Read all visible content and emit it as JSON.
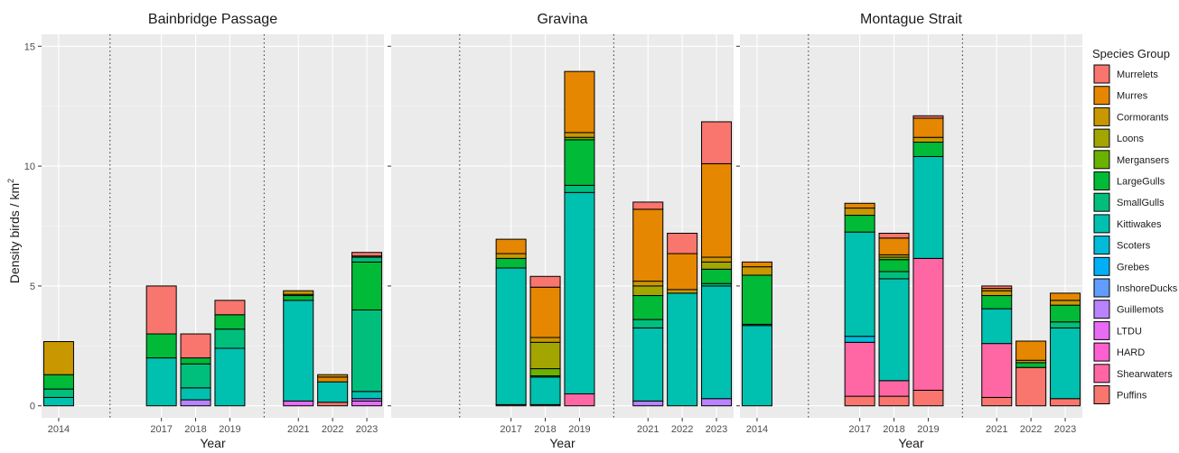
{
  "chart_data": {
    "type": "bar",
    "stacked": true,
    "ylabel": "Density birds / km",
    "ylabel_superscript": "2",
    "xlabel": "Year",
    "ylim": [
      -0.5,
      15.5
    ],
    "yticks": [
      0,
      5,
      10,
      15
    ],
    "grid": true,
    "legend_title": "Species Group",
    "legend_position": "right",
    "species": [
      {
        "name": "Murrelets",
        "color": "#F8766D"
      },
      {
        "name": "Murres",
        "color": "#E58700"
      },
      {
        "name": "Cormorants",
        "color": "#C99800"
      },
      {
        "name": "Loons",
        "color": "#A3A500"
      },
      {
        "name": "Mergansers",
        "color": "#6BB100"
      },
      {
        "name": "LargeGulls",
        "color": "#00BA38"
      },
      {
        "name": "SmallGulls",
        "color": "#00BF7D"
      },
      {
        "name": "Kittiwakes",
        "color": "#00C0AF"
      },
      {
        "name": "Scoters",
        "color": "#00BCD8"
      },
      {
        "name": "Grebes",
        "color": "#00B0F6"
      },
      {
        "name": "InshoreDucks",
        "color": "#619CFF"
      },
      {
        "name": "Guillemots",
        "color": "#B983FF"
      },
      {
        "name": "LTDU",
        "color": "#E76BF3"
      },
      {
        "name": "HARD",
        "color": "#FD61D1"
      },
      {
        "name": "Shearwaters",
        "color": "#FF67A4"
      },
      {
        "name": "Puffins",
        "color": "#F8766D"
      }
    ],
    "panels": [
      {
        "title": "Bainbridge Passage",
        "years": [
          {
            "year": "2014",
            "slot": 0,
            "segments": [
              {
                "s": "Kittiwakes",
                "v": 0.35
              },
              {
                "s": "SmallGulls",
                "v": 0.35
              },
              {
                "s": "LargeGulls",
                "v": 0.6
              },
              {
                "s": "Cormorants",
                "v": 1.38
              }
            ]
          },
          {
            "year": "2017",
            "slot": 3,
            "segments": [
              {
                "s": "Kittiwakes",
                "v": 2.0
              },
              {
                "s": "LargeGulls",
                "v": 1.0
              },
              {
                "s": "Murrelets",
                "v": 2.0
              }
            ]
          },
          {
            "year": "2018",
            "slot": 4,
            "segments": [
              {
                "s": "Guillemots",
                "v": 0.25
              },
              {
                "s": "Kittiwakes",
                "v": 0.5
              },
              {
                "s": "SmallGulls",
                "v": 1.0
              },
              {
                "s": "LargeGulls",
                "v": 0.25
              },
              {
                "s": "Murrelets",
                "v": 1.0
              }
            ]
          },
          {
            "year": "2019",
            "slot": 5,
            "segments": [
              {
                "s": "Kittiwakes",
                "v": 2.4
              },
              {
                "s": "SmallGulls",
                "v": 0.8
              },
              {
                "s": "LargeGulls",
                "v": 0.6
              },
              {
                "s": "Murrelets",
                "v": 0.6
              }
            ]
          },
          {
            "year": "2021",
            "slot": 7,
            "segments": [
              {
                "s": "LTDU",
                "v": 0.2
              },
              {
                "s": "Kittiwakes",
                "v": 4.2
              },
              {
                "s": "LargeGulls",
                "v": 0.2
              },
              {
                "s": "Mergansers",
                "v": 0.05
              },
              {
                "s": "Cormorants",
                "v": 0.15
              }
            ]
          },
          {
            "year": "2022",
            "slot": 8,
            "segments": [
              {
                "s": "Puffins",
                "v": 0.15
              },
              {
                "s": "Kittiwakes",
                "v": 0.85
              },
              {
                "s": "Murres",
                "v": 0.2
              },
              {
                "s": "Cormorants",
                "v": 0.1
              }
            ]
          },
          {
            "year": "2023",
            "slot": 9,
            "segments": [
              {
                "s": "LTDU",
                "v": 0.2
              },
              {
                "s": "Guillemots",
                "v": 0.1
              },
              {
                "s": "Kittiwakes",
                "v": 0.3
              },
              {
                "s": "SmallGulls",
                "v": 3.4
              },
              {
                "s": "LargeGulls",
                "v": 2.0
              },
              {
                "s": "SmallGulls",
                "v": 0.2
              },
              {
                "s": "Murres",
                "v": 0.05
              },
              {
                "s": "Murrelets",
                "v": 0.15
              }
            ]
          }
        ]
      },
      {
        "title": "Gravina",
        "years": [
          {
            "year": "2017",
            "slot": 3,
            "segments": [
              {
                "s": "Puffins",
                "v": 0.05
              },
              {
                "s": "Kittiwakes",
                "v": 5.7
              },
              {
                "s": "LargeGulls",
                "v": 0.4
              },
              {
                "s": "Cormorants",
                "v": 0.2
              },
              {
                "s": "Murres",
                "v": 0.6
              }
            ]
          },
          {
            "year": "2018",
            "slot": 4,
            "segments": [
              {
                "s": "Puffins",
                "v": 0.05
              },
              {
                "s": "Kittiwakes",
                "v": 1.15
              },
              {
                "s": "LargeGulls",
                "v": 0.05
              },
              {
                "s": "Mergansers",
                "v": 0.3
              },
              {
                "s": "Loons",
                "v": 1.1
              },
              {
                "s": "Cormorants",
                "v": 0.2
              },
              {
                "s": "Murres",
                "v": 2.1
              },
              {
                "s": "Murrelets",
                "v": 0.45
              }
            ]
          },
          {
            "year": "2019",
            "slot": 5,
            "segments": [
              {
                "s": "Shearwaters",
                "v": 0.5
              },
              {
                "s": "Kittiwakes",
                "v": 8.4
              },
              {
                "s": "SmallGulls",
                "v": 0.3
              },
              {
                "s": "LargeGulls",
                "v": 1.9
              },
              {
                "s": "Mergansers",
                "v": 0.1
              },
              {
                "s": "Cormorants",
                "v": 0.2
              },
              {
                "s": "Murres",
                "v": 2.55
              }
            ]
          },
          {
            "year": "2021",
            "slot": 7,
            "segments": [
              {
                "s": "Guillemots",
                "v": 0.2
              },
              {
                "s": "Kittiwakes",
                "v": 3.05
              },
              {
                "s": "SmallGulls",
                "v": 0.35
              },
              {
                "s": "LargeGulls",
                "v": 1.0
              },
              {
                "s": "Loons",
                "v": 0.4
              },
              {
                "s": "Cormorants",
                "v": 0.2
              },
              {
                "s": "Murres",
                "v": 3.0
              },
              {
                "s": "Murrelets",
                "v": 0.3
              }
            ]
          },
          {
            "year": "2022",
            "slot": 8,
            "segments": [
              {
                "s": "Kittiwakes",
                "v": 4.7
              },
              {
                "s": "Cormorants",
                "v": 0.15
              },
              {
                "s": "Murres",
                "v": 1.5
              },
              {
                "s": "Murrelets",
                "v": 0.85
              }
            ]
          },
          {
            "year": "2023",
            "slot": 9,
            "segments": [
              {
                "s": "Guillemots",
                "v": 0.3
              },
              {
                "s": "Kittiwakes",
                "v": 4.7
              },
              {
                "s": "SmallGulls",
                "v": 0.1
              },
              {
                "s": "LargeGulls",
                "v": 0.6
              },
              {
                "s": "Loons",
                "v": 0.3
              },
              {
                "s": "Cormorants",
                "v": 0.2
              },
              {
                "s": "Murres",
                "v": 3.9
              },
              {
                "s": "Murrelets",
                "v": 1.75
              }
            ]
          }
        ]
      },
      {
        "title": "Montague Strait",
        "years": [
          {
            "year": "2014",
            "slot": 0,
            "segments": [
              {
                "s": "Kittiwakes",
                "v": 3.35
              },
              {
                "s": "SmallGulls",
                "v": 0.05
              },
              {
                "s": "LargeGulls",
                "v": 2.05
              },
              {
                "s": "Cormorants",
                "v": 0.35
              },
              {
                "s": "Murres",
                "v": 0.2
              }
            ]
          },
          {
            "year": "2017",
            "slot": 3,
            "segments": [
              {
                "s": "Puffins",
                "v": 0.4
              },
              {
                "s": "Shearwaters",
                "v": 2.25
              },
              {
                "s": "Scoters",
                "v": 0.25
              },
              {
                "s": "Kittiwakes",
                "v": 4.35
              },
              {
                "s": "LargeGulls",
                "v": 0.7
              },
              {
                "s": "Cormorants",
                "v": 0.3
              },
              {
                "s": "Murres",
                "v": 0.2
              }
            ]
          },
          {
            "year": "2018",
            "slot": 4,
            "segments": [
              {
                "s": "Puffins",
                "v": 0.4
              },
              {
                "s": "Shearwaters",
                "v": 0.65
              },
              {
                "s": "Kittiwakes",
                "v": 4.25
              },
              {
                "s": "SmallGulls",
                "v": 0.3
              },
              {
                "s": "LargeGulls",
                "v": 0.5
              },
              {
                "s": "Mergansers",
                "v": 0.1
              },
              {
                "s": "Cormorants",
                "v": 0.1
              },
              {
                "s": "Murres",
                "v": 0.7
              },
              {
                "s": "Murrelets",
                "v": 0.2
              }
            ]
          },
          {
            "year": "2019",
            "slot": 5,
            "segments": [
              {
                "s": "Puffins",
                "v": 0.65
              },
              {
                "s": "Shearwaters",
                "v": 5.5
              },
              {
                "s": "Kittiwakes",
                "v": 4.25
              },
              {
                "s": "LargeGulls",
                "v": 0.6
              },
              {
                "s": "Cormorants",
                "v": 0.2
              },
              {
                "s": "Murres",
                "v": 0.8
              },
              {
                "s": "Murrelets",
                "v": 0.1
              }
            ]
          },
          {
            "year": "2021",
            "slot": 7,
            "segments": [
              {
                "s": "Puffins",
                "v": 0.35
              },
              {
                "s": "Shearwaters",
                "v": 2.25
              },
              {
                "s": "Kittiwakes",
                "v": 1.45
              },
              {
                "s": "LargeGulls",
                "v": 0.55
              },
              {
                "s": "Cormorants",
                "v": 0.2
              },
              {
                "s": "Murres",
                "v": 0.1
              },
              {
                "s": "Murrelets",
                "v": 0.1
              }
            ]
          },
          {
            "year": "2022",
            "slot": 8,
            "segments": [
              {
                "s": "Puffins",
                "v": 1.6
              },
              {
                "s": "LargeGulls",
                "v": 0.2
              },
              {
                "s": "Cormorants",
                "v": 0.1
              },
              {
                "s": "Murres",
                "v": 0.8
              }
            ]
          },
          {
            "year": "2023",
            "slot": 9,
            "segments": [
              {
                "s": "Puffins",
                "v": 0.3
              },
              {
                "s": "Kittiwakes",
                "v": 2.95
              },
              {
                "s": "SmallGulls",
                "v": 0.25
              },
              {
                "s": "LargeGulls",
                "v": 0.7
              },
              {
                "s": "Cormorants",
                "v": 0.2
              },
              {
                "s": "Murres",
                "v": 0.3
              }
            ]
          }
        ]
      }
    ]
  }
}
